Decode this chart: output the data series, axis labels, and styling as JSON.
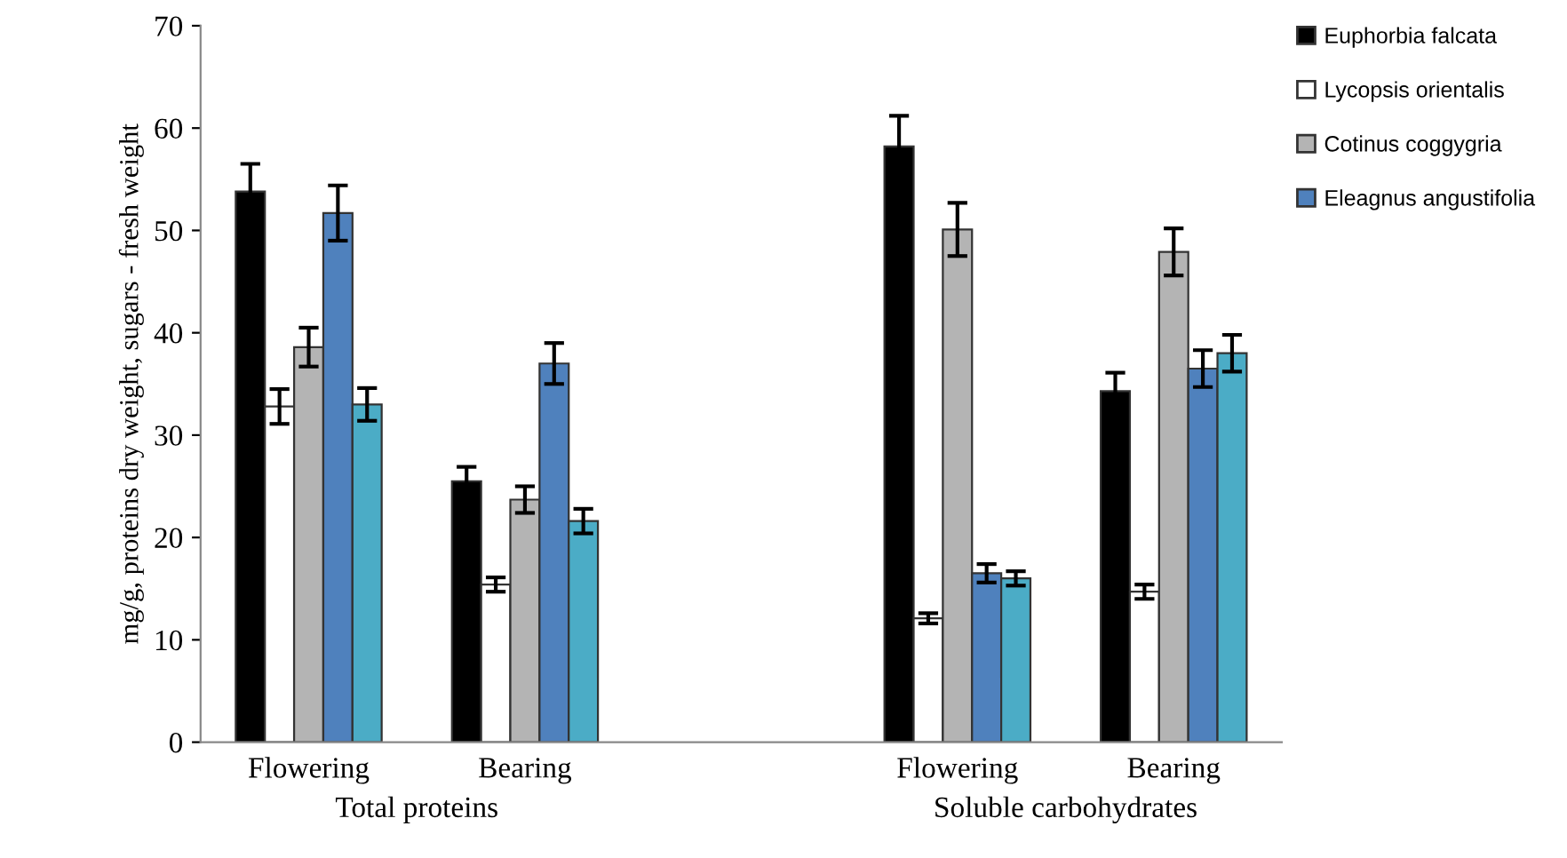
{
  "chart_data": {
    "type": "bar",
    "ylabel": "mg/g, proteins dry weight, sugars - fresh weight",
    "categories": [
      "Flowering",
      "Bearing",
      null,
      "Flowering",
      "Bearing"
    ],
    "series": [
      {
        "name": "Euphorbia falcata",
        "color": "#000000",
        "values": [
          53.8,
          25.5,
          null,
          58.2,
          34.3
        ],
        "errors": [
          2.7,
          1.4,
          null,
          3.0,
          1.8
        ]
      },
      {
        "name": "Lycopsis orientalis",
        "color": "#ffffff",
        "values": [
          32.8,
          15.4,
          null,
          12.1,
          14.7
        ],
        "errors": [
          1.7,
          0.7,
          null,
          0.5,
          0.7
        ]
      },
      {
        "name": "Cotinus coggygria",
        "color": "#b4b4b4",
        "values": [
          38.6,
          23.7,
          null,
          50.1,
          47.9
        ],
        "errors": [
          1.9,
          1.3,
          null,
          2.6,
          2.3
        ]
      },
      {
        "name": "Eleagnus angustifolia",
        "color": "#4f81bd",
        "values": [
          51.7,
          37.0,
          null,
          16.5,
          36.5
        ],
        "errors": [
          2.7,
          2.0,
          null,
          0.9,
          1.8
        ]
      },
      {
        "color": "#4bacc6",
        "values": [
          33.0,
          21.6,
          null,
          16.0,
          38.0
        ],
        "errors": [
          1.6,
          1.2,
          null,
          0.7,
          1.8
        ]
      }
    ],
    "annotations": [
      "Total proteins",
      "Soluble carbohydrates"
    ],
    "ylim": [
      0,
      70
    ],
    "yticks": [
      0,
      10,
      20,
      30,
      40,
      50,
      60,
      70
    ],
    "grid": false,
    "legend": "top right"
  }
}
